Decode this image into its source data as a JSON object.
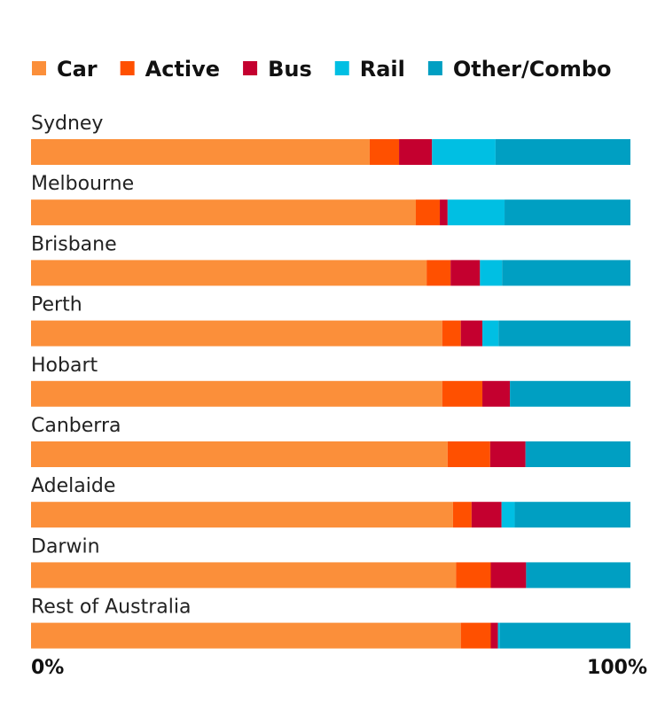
{
  "chart_data": {
    "type": "stacked-bar-horizontal",
    "categories": [
      "Sydney",
      "Melbourne",
      "Brisbane",
      "Perth",
      "Hobart",
      "Canberra",
      "Adelaide",
      "Darwin",
      "Rest of Australia"
    ],
    "series": [
      {
        "name": "Car",
        "color": "#fb8f3a",
        "values": [
          56.5,
          64.2,
          66.0,
          68.6,
          68.6,
          69.5,
          70.4,
          70.9,
          71.7
        ]
      },
      {
        "name": "Active",
        "color": "#ff5000",
        "values": [
          4.9,
          4.0,
          4.0,
          3.1,
          6.7,
          7.1,
          3.1,
          5.8,
          5.0
        ]
      },
      {
        "name": "Bus",
        "color": "#c4002f",
        "values": [
          5.5,
          1.3,
          4.9,
          3.6,
          4.6,
          5.9,
          5.0,
          5.9,
          1.2
        ]
      },
      {
        "name": "Rail",
        "color": "#00bfe3",
        "values": [
          10.6,
          9.5,
          3.7,
          2.7,
          0,
          0,
          2.2,
          0,
          0.3
        ]
      },
      {
        "name": "Other/Combo",
        "color": "#009fc2",
        "values": [
          22.5,
          21.0,
          21.4,
          22.0,
          20.1,
          17.5,
          19.3,
          17.4,
          21.8
        ]
      }
    ],
    "xlim": [
      0,
      100
    ],
    "xticks": [
      {
        "value": 0,
        "label": "0%"
      },
      {
        "value": 100,
        "label": "100%"
      }
    ],
    "legend": "top"
  }
}
